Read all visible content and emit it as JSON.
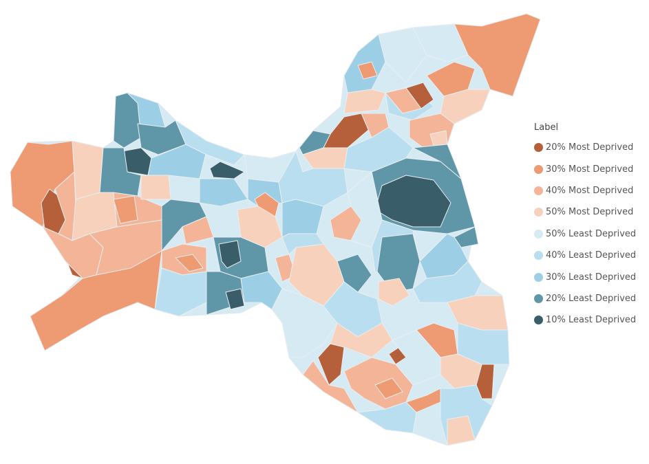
{
  "legend": {
    "title": "Label",
    "items": [
      {
        "label": "20% Most Deprived",
        "color": "#b5603a"
      },
      {
        "label": "30% Most Deprived",
        "color": "#ee9a72"
      },
      {
        "label": "40% Most Deprived",
        "color": "#f4b497"
      },
      {
        "label": "50% Most Deprived",
        "color": "#f8d1bd"
      },
      {
        "label": "50% Least Deprived",
        "color": "#d6eaf4"
      },
      {
        "label": "40% Least Deprived",
        "color": "#b9deef"
      },
      {
        "label": "30% Least Deprived",
        "color": "#9ccfe6"
      },
      {
        "label": "20% Least Deprived",
        "color": "#5f97a9"
      },
      {
        "label": "10% Least Deprived",
        "color": "#3a5e69"
      }
    ]
  }
}
